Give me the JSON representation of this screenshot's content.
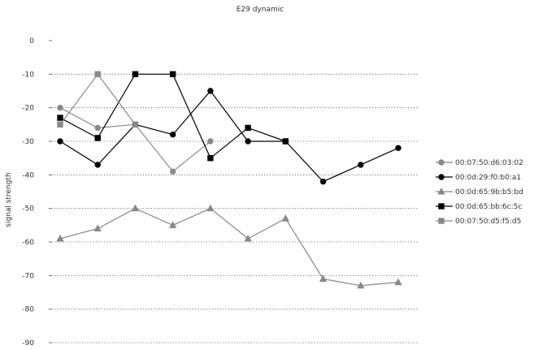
{
  "chart_data": {
    "type": "line",
    "title": "E29 dynamic",
    "xlabel": "",
    "ylabel": "signal strength",
    "ylim": [
      -90,
      0
    ],
    "yticks": [
      0,
      -10,
      -20,
      -30,
      -40,
      -50,
      -60,
      -70,
      -80,
      -90
    ],
    "x": [
      1,
      2,
      3,
      4,
      5,
      6,
      7,
      8,
      9,
      10
    ],
    "grid": "horizontal dotted",
    "legend_position": "right",
    "series": [
      {
        "name": "00:07:50:d6:03:02",
        "color": "#888888",
        "marker": "circle",
        "values": [
          -20,
          -26,
          -25,
          -39,
          -30,
          null,
          null,
          null,
          null,
          null
        ]
      },
      {
        "name": "00:0d:29:f0:b0:a1",
        "color": "#000000",
        "marker": "circle",
        "values": [
          -30,
          -37,
          -25,
          -28,
          -15,
          -30,
          -30,
          -42,
          -37,
          -32
        ]
      },
      {
        "name": "00:0d:65:9b:b5:bd",
        "color": "#888888",
        "marker": "triangle",
        "values": [
          -59,
          -56,
          -50,
          -55,
          -50,
          -59,
          -53,
          -71,
          -73,
          -72
        ]
      },
      {
        "name": "00:0d:65:bb:6c:5c",
        "color": "#000000",
        "marker": "square",
        "values": [
          -23,
          -29,
          -10,
          -10,
          -35,
          -26,
          -30,
          null,
          null,
          null
        ]
      },
      {
        "name": "00:07:50:d5:f5:d5",
        "color": "#888888",
        "marker": "square",
        "values": [
          -25,
          -10,
          -25,
          null,
          null,
          null,
          null,
          null,
          null,
          null
        ]
      }
    ]
  }
}
